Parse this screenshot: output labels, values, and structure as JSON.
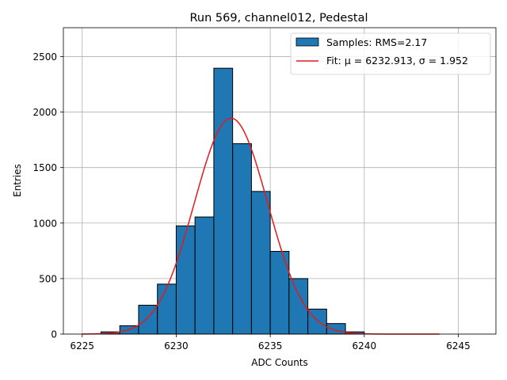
{
  "chart_data": {
    "type": "bar",
    "title": "Run 569, channel012, Pedestal",
    "xlabel": "ADC Counts",
    "ylabel": "Entries",
    "xlim": [
      6224.0,
      6247.0
    ],
    "ylim": [
      0,
      2760
    ],
    "xticks": [
      6225,
      6230,
      6235,
      6240,
      6245
    ],
    "yticks": [
      0,
      500,
      1000,
      1500,
      2000,
      2500
    ],
    "grid": true,
    "legend_position": "top-right",
    "histogram": {
      "name": "Samples: RMS=2.17",
      "color": "#1f77b4",
      "edgecolor": "#000000",
      "bin_edges": [
        6226,
        6227,
        6228,
        6229,
        6230,
        6231,
        6232,
        6233,
        6234,
        6235,
        6236,
        6237,
        6238,
        6239,
        6240
      ],
      "counts": [
        20,
        75,
        260,
        450,
        975,
        1055,
        2395,
        1715,
        1285,
        745,
        500,
        225,
        95,
        20
      ]
    },
    "fit": {
      "name": "Fit: μ = 6232.913, σ = 1.952",
      "color": "#e41a1c",
      "mu": 6232.913,
      "sigma": 1.952,
      "amplitude": 1945,
      "x_range": [
        6225,
        6244
      ]
    }
  }
}
